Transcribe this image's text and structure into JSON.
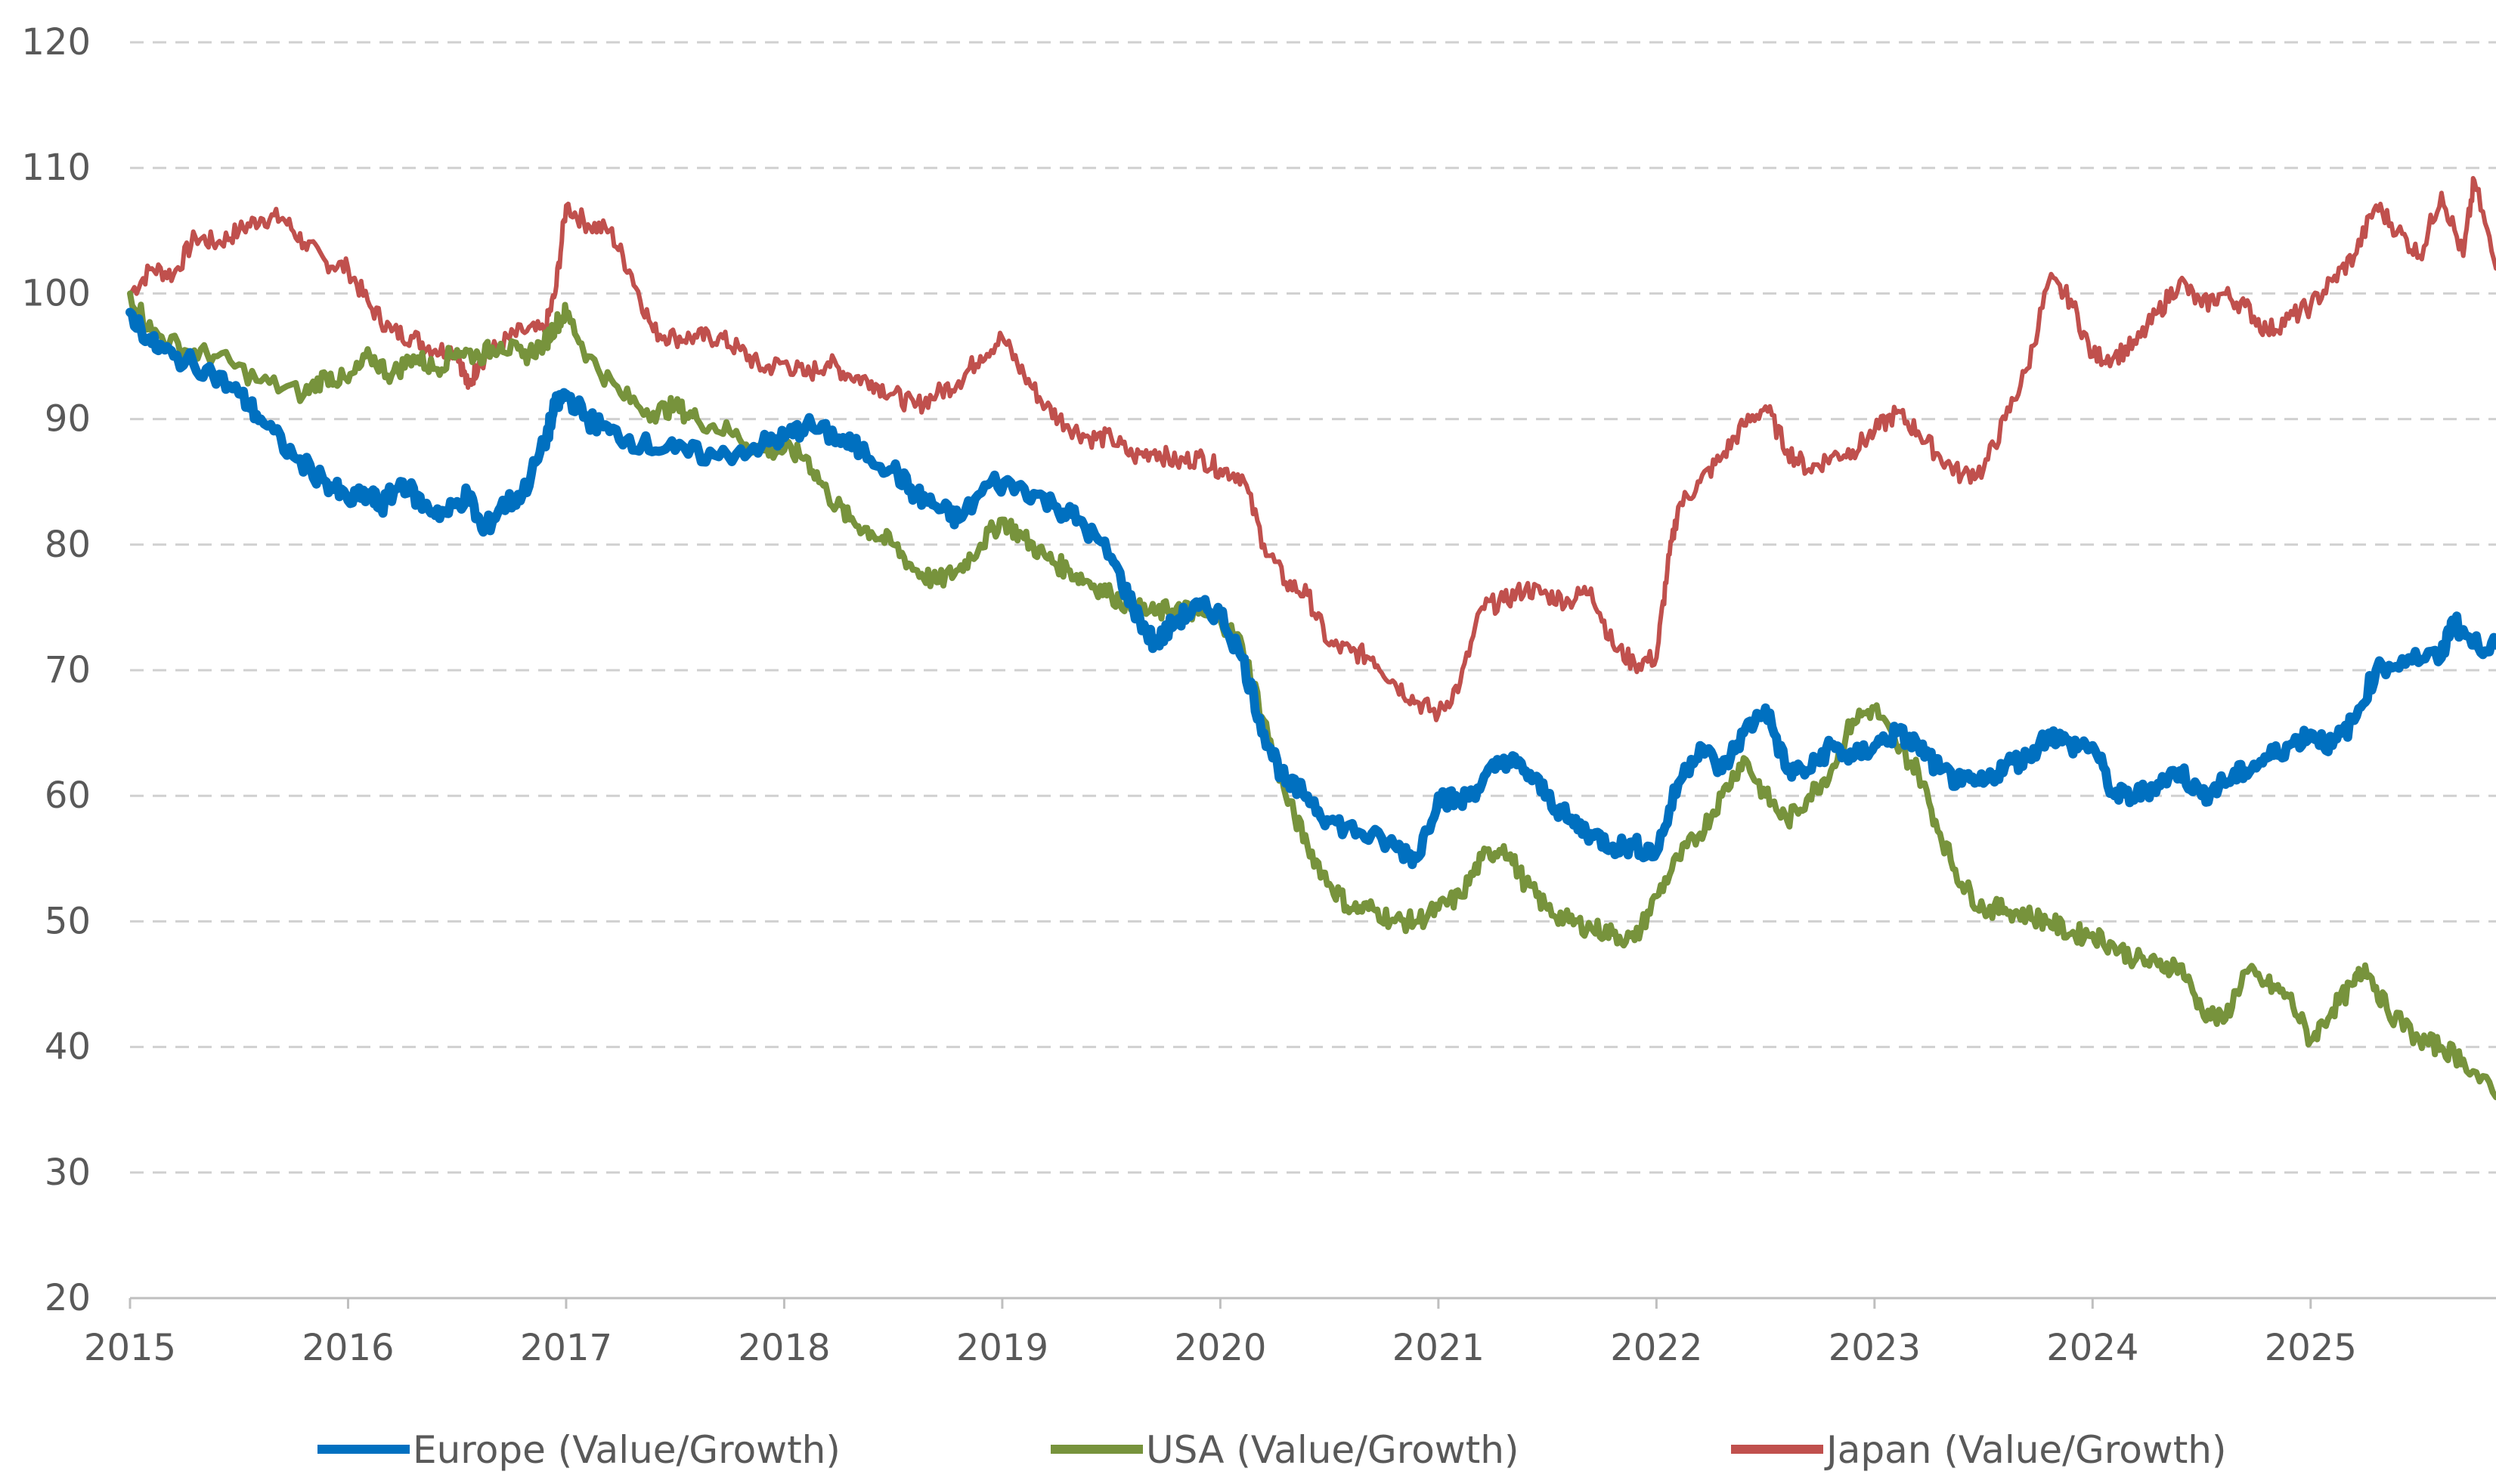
{
  "chart_data": {
    "type": "line",
    "title": "",
    "xlabel": "",
    "ylabel": "",
    "xlim": [
      2015.0,
      2025.85
    ],
    "ylim": [
      20,
      120
    ],
    "x_ticks": [
      "2015",
      "2016",
      "2017",
      "2018",
      "2019",
      "2020",
      "2021",
      "2022",
      "2023",
      "2024",
      "2025"
    ],
    "y_ticks": [
      "20",
      "30",
      "40",
      "50",
      "60",
      "70",
      "80",
      "90",
      "100",
      "110",
      "120"
    ],
    "grid": "horizontal dashed",
    "legend_position": "bottom",
    "series": [
      {
        "name": "Europe (Value/Growth)",
        "color": "#0070C0",
        "x": [
          2015.0,
          2015.1,
          2015.2,
          2015.35,
          2015.5,
          2015.6,
          2015.75,
          2015.9,
          2016.0,
          2016.1,
          2016.15,
          2016.25,
          2016.35,
          2016.45,
          2016.55,
          2016.62,
          2016.7,
          2016.8,
          2016.9,
          2016.95,
          2017.0,
          2017.1,
          2017.2,
          2017.35,
          2017.5,
          2017.7,
          2017.9,
          2018.0,
          2018.1,
          2018.25,
          2018.35,
          2018.5,
          2018.6,
          2018.7,
          2018.8,
          2018.95,
          2019.1,
          2019.25,
          2019.35,
          2019.5,
          2019.6,
          2019.7,
          2019.8,
          2019.9,
          2020.0,
          2020.1,
          2020.2,
          2020.3,
          2020.4,
          2020.5,
          2020.65,
          2020.8,
          2020.9,
          2021.0,
          2021.1,
          2021.2,
          2021.3,
          2021.4,
          2021.5,
          2021.6,
          2021.7,
          2021.8,
          2021.9,
          2022.0,
          2022.1,
          2022.2,
          2022.3,
          2022.4,
          2022.5,
          2022.6,
          2022.7,
          2022.8,
          2022.9,
          2023.0,
          2023.1,
          2023.2,
          2023.3,
          2023.4,
          2023.5,
          2023.6,
          2023.7,
          2023.8,
          2023.9,
          2024.0,
          2024.1,
          2024.2,
          2024.3,
          2024.4,
          2024.5,
          2024.6,
          2024.7,
          2024.8,
          2024.9,
          2025.0,
          2025.1,
          2025.2,
          2025.3,
          2025.45,
          2025.6,
          2025.65,
          2025.75,
          2025.85
        ],
        "y": [
          98.5,
          96,
          95,
          94,
          92,
          90,
          87,
          85,
          83.5,
          84,
          83,
          85,
          83,
          82.5,
          84,
          81,
          83,
          84,
          88,
          91,
          92,
          90,
          89,
          88,
          87.5,
          87,
          88,
          88.5,
          89.5,
          88.5,
          87.5,
          86,
          84,
          83,
          82,
          85,
          84.5,
          83,
          82,
          79,
          75,
          72,
          74,
          75,
          74.5,
          71,
          65,
          61,
          60,
          58,
          57,
          56,
          55,
          60,
          59.5,
          61,
          63,
          62,
          60,
          58,
          57,
          56,
          56,
          55.5,
          61,
          64,
          62,
          65,
          67,
          62,
          62,
          64,
          63,
          64,
          65,
          64,
          62,
          61,
          61,
          62.5,
          63,
          65,
          64,
          64,
          60,
          60,
          61,
          62,
          60,
          61,
          62,
          63,
          64,
          65,
          64,
          66,
          70,
          71,
          71,
          74,
          72,
          72
        ]
      },
      {
        "name": "USA (Value/Growth)",
        "color": "#77933C",
        "x": [
          2015.0,
          2015.1,
          2015.25,
          2015.4,
          2015.6,
          2015.8,
          2015.9,
          2016.0,
          2016.1,
          2016.2,
          2016.3,
          2016.4,
          2016.5,
          2016.6,
          2016.7,
          2016.8,
          2016.9,
          2016.95,
          2017.0,
          2017.1,
          2017.25,
          2017.4,
          2017.5,
          2017.6,
          2017.75,
          2017.9,
          2018.0,
          2018.1,
          2018.2,
          2018.3,
          2018.4,
          2018.5,
          2018.6,
          2018.7,
          2018.8,
          2018.9,
          2019.0,
          2019.1,
          2019.2,
          2019.3,
          2019.4,
          2019.5,
          2019.6,
          2019.7,
          2019.8,
          2019.9,
          2020.0,
          2020.1,
          2020.2,
          2020.3,
          2020.4,
          2020.5,
          2020.6,
          2020.7,
          2020.8,
          2020.9,
          2021.0,
          2021.1,
          2021.2,
          2021.3,
          2021.4,
          2021.5,
          2021.6,
          2021.7,
          2021.8,
          2021.9,
          2022.0,
          2022.1,
          2022.2,
          2022.3,
          2022.4,
          2022.5,
          2022.6,
          2022.7,
          2022.8,
          2022.9,
          2023.0,
          2023.1,
          2023.2,
          2023.3,
          2023.4,
          2023.5,
          2023.6,
          2023.7,
          2023.8,
          2023.9,
          2024.0,
          2024.1,
          2024.2,
          2024.3,
          2024.4,
          2024.5,
          2024.6,
          2024.7,
          2024.8,
          2024.9,
          2025.0,
          2025.1,
          2025.2,
          2025.25,
          2025.35,
          2025.5,
          2025.6,
          2025.7,
          2025.85
        ],
        "y": [
          100,
          97,
          95.5,
          95,
          93,
          92,
          93.5,
          93,
          95,
          93.5,
          95,
          94,
          95.5,
          95,
          96,
          95,
          96,
          97.5,
          98.5,
          95,
          92,
          90.5,
          91,
          90,
          89,
          87.5,
          87.5,
          87,
          84,
          82,
          81,
          80,
          78,
          77,
          78,
          80,
          82,
          80.5,
          79,
          78,
          77,
          76,
          75,
          74.5,
          75,
          74.5,
          74,
          72,
          66,
          60,
          56,
          53,
          51,
          51,
          50,
          50,
          51,
          52,
          55,
          56,
          53,
          51,
          50,
          49.5,
          49,
          48.5,
          52,
          55,
          57,
          60,
          63,
          60,
          58,
          60,
          62,
          66,
          67,
          64,
          62,
          57,
          53,
          51,
          51,
          50.5,
          50,
          49,
          49,
          48,
          47,
          46.5,
          46.5,
          43,
          42,
          46,
          45,
          44,
          40.5,
          43,
          45,
          46.5,
          43,
          40.5,
          40,
          39,
          36
        ]
      },
      {
        "name": "Japan (Value/Growth)",
        "color": "#C0504D",
        "x": [
          2015.0,
          2015.1,
          2015.2,
          2015.3,
          2015.4,
          2015.5,
          2015.6,
          2015.7,
          2015.8,
          2015.9,
          2016.0,
          2016.1,
          2016.2,
          2016.3,
          2016.4,
          2016.5,
          2016.55,
          2016.6,
          2016.7,
          2016.8,
          2016.9,
          2016.95,
          2017.0,
          2017.1,
          2017.2,
          2017.3,
          2017.4,
          2017.5,
          2017.6,
          2017.7,
          2017.8,
          2017.9,
          2018.0,
          2018.1,
          2018.2,
          2018.3,
          2018.4,
          2018.5,
          2018.6,
          2018.7,
          2018.8,
          2018.9,
          2019.0,
          2019.1,
          2019.2,
          2019.3,
          2019.4,
          2019.5,
          2019.6,
          2019.7,
          2019.8,
          2019.9,
          2020.0,
          2020.1,
          2020.2,
          2020.3,
          2020.4,
          2020.5,
          2020.6,
          2020.7,
          2020.8,
          2020.9,
          2021.0,
          2021.1,
          2021.2,
          2021.3,
          2021.4,
          2021.5,
          2021.6,
          2021.7,
          2021.8,
          2021.9,
          2022.0,
          2022.05,
          2022.1,
          2022.2,
          2022.3,
          2022.4,
          2022.5,
          2022.6,
          2022.7,
          2022.8,
          2022.9,
          2023.0,
          2023.1,
          2023.2,
          2023.3,
          2023.4,
          2023.5,
          2023.6,
          2023.7,
          2023.8,
          2023.9,
          2024.0,
          2024.1,
          2024.2,
          2024.3,
          2024.4,
          2024.5,
          2024.6,
          2024.7,
          2024.8,
          2024.9,
          2025.0,
          2025.1,
          2025.2,
          2025.3,
          2025.4,
          2025.5,
          2025.6,
          2025.7,
          2025.75,
          2025.85
        ],
        "y": [
          100,
          102,
          101.5,
          104.5,
          104,
          105,
          106,
          106,
          104,
          102.5,
          102,
          99,
          97,
          96.5,
          95.5,
          95.5,
          92.5,
          94.5,
          96,
          97,
          97,
          100,
          107,
          105.5,
          105,
          101.5,
          97,
          96.5,
          96.5,
          96.5,
          95.5,
          94,
          94.5,
          93.5,
          94.5,
          93.5,
          93,
          92,
          91,
          92,
          93,
          95,
          96.5,
          93.5,
          91,
          89.5,
          88.5,
          88.5,
          87,
          87.5,
          86.5,
          87,
          86,
          85.5,
          80,
          77,
          76,
          72,
          71.5,
          71,
          69,
          67.5,
          66.5,
          69,
          75,
          75.5,
          76.5,
          76,
          75.5,
          76.5,
          72,
          70.5,
          71,
          78,
          83,
          85,
          87,
          89.5,
          91,
          87.5,
          86,
          87,
          87.5,
          89,
          90.5,
          89,
          87,
          85.5,
          86,
          90,
          94,
          101,
          99.5,
          95,
          95,
          96,
          98.5,
          101,
          99,
          100,
          99,
          97,
          98,
          99,
          101,
          103,
          107,
          105,
          103,
          108,
          103,
          109,
          102
        ]
      }
    ]
  }
}
